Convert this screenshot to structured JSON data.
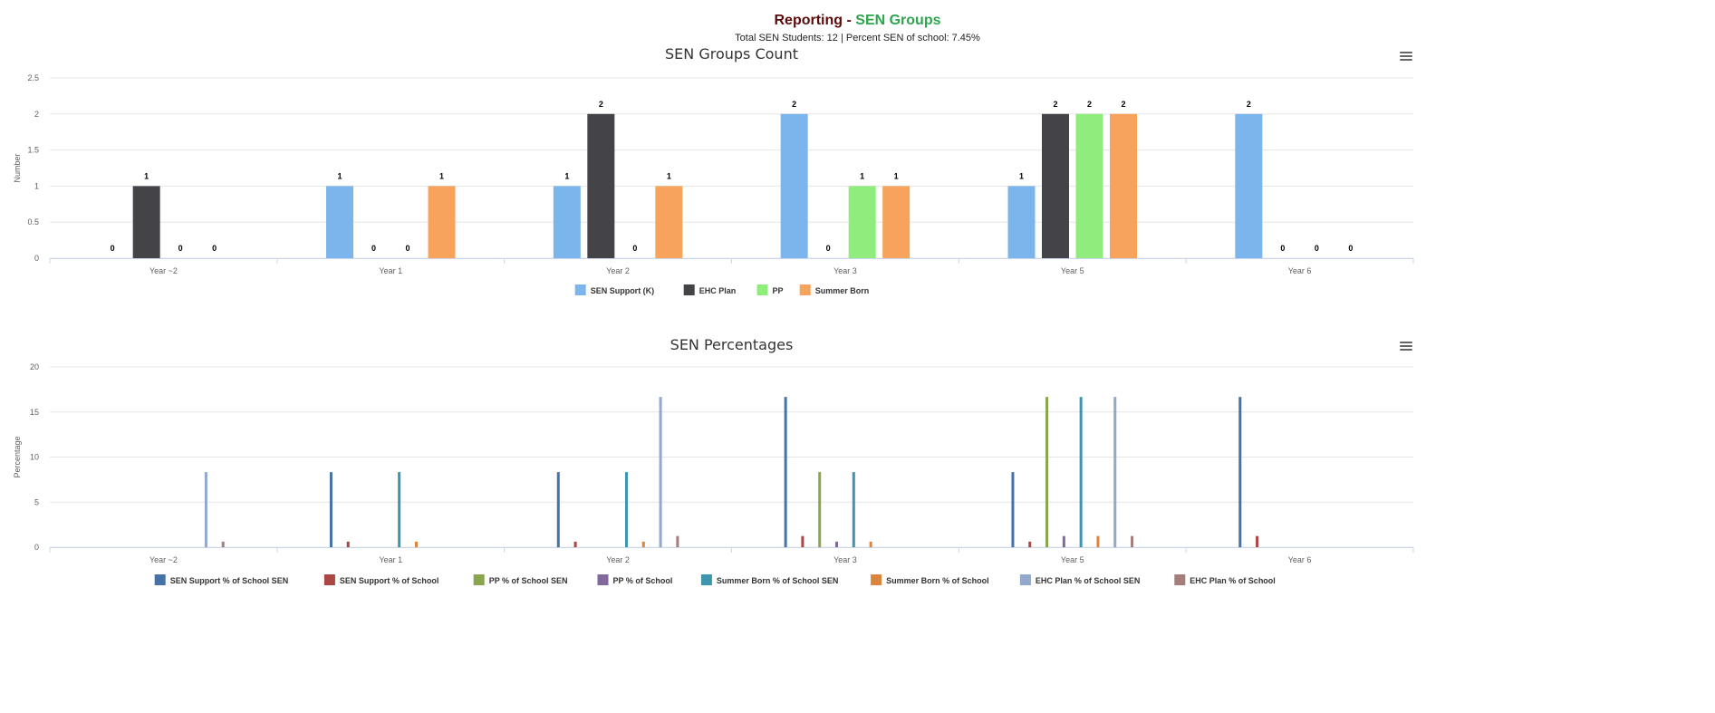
{
  "header": {
    "title_prefix": "Reporting - ",
    "title_highlight": "SEN Groups",
    "subtitle": "Total SEN Students: 12 | Percent SEN of school: 7.45%"
  },
  "chart_data": [
    {
      "type": "bar",
      "title": "SEN Groups Count",
      "ylabel": "Number",
      "xlabel": "",
      "ylim": [
        0,
        2.5
      ],
      "yticks": [
        0,
        0.5,
        1,
        1.5,
        2,
        2.5
      ],
      "grid": true,
      "legend": "bottom",
      "data_labels": true,
      "menu_icon": "hamburger-menu-icon",
      "categories": [
        "Year ~2",
        "Year 1",
        "Year 2",
        "Year 3",
        "Year 5",
        "Year 6"
      ],
      "series": [
        {
          "name": "SEN Support (K)",
          "color": "#7cb5ec",
          "values": [
            0,
            1,
            1,
            2,
            1,
            2
          ]
        },
        {
          "name": "EHC Plan",
          "color": "#434348",
          "values": [
            1,
            0,
            2,
            0,
            2,
            0
          ]
        },
        {
          "name": "PP",
          "color": "#90ed7d",
          "values": [
            0,
            0,
            0,
            1,
            2,
            0
          ]
        },
        {
          "name": "Summer Born",
          "color": "#f7a35c",
          "values": [
            0,
            1,
            1,
            1,
            2,
            0
          ]
        }
      ]
    },
    {
      "type": "bar",
      "title": "SEN Percentages",
      "ylabel": "Percentage",
      "xlabel": "",
      "ylim": [
        0,
        20
      ],
      "yticks": [
        0,
        5,
        10,
        15,
        20
      ],
      "grid": true,
      "legend": "bottom",
      "data_labels": false,
      "menu_icon": "hamburger-menu-icon",
      "categories": [
        "Year ~2",
        "Year 1",
        "Year 2",
        "Year 3",
        "Year 5",
        "Year 6"
      ],
      "series": [
        {
          "name": "SEN Support % of School SEN",
          "color": "#4572A7",
          "values": [
            0,
            8.33,
            8.33,
            16.67,
            8.33,
            16.67
          ]
        },
        {
          "name": "SEN Support % of School",
          "color": "#AA4643",
          "values": [
            0,
            0.62,
            0.62,
            1.24,
            0.62,
            1.24
          ]
        },
        {
          "name": "PP % of School SEN",
          "color": "#89A54E",
          "values": [
            0,
            0,
            0,
            8.33,
            16.67,
            0
          ]
        },
        {
          "name": "PP % of School",
          "color": "#80699B",
          "values": [
            0,
            0,
            0,
            0.62,
            1.24,
            0
          ]
        },
        {
          "name": "Summer Born % of School SEN",
          "color": "#3D96AE",
          "values": [
            0,
            8.33,
            8.33,
            8.33,
            16.67,
            0
          ]
        },
        {
          "name": "Summer Born % of School",
          "color": "#DB843D",
          "values": [
            0,
            0.62,
            0.62,
            0.62,
            1.24,
            0
          ]
        },
        {
          "name": "EHC Plan % of School SEN",
          "color": "#92A8CD",
          "values": [
            8.33,
            0,
            16.67,
            0,
            16.67,
            0
          ]
        },
        {
          "name": "EHC Plan % of School",
          "color": "#A47D7C",
          "values": [
            0.62,
            0,
            1.24,
            0,
            1.24,
            0
          ]
        }
      ]
    }
  ]
}
